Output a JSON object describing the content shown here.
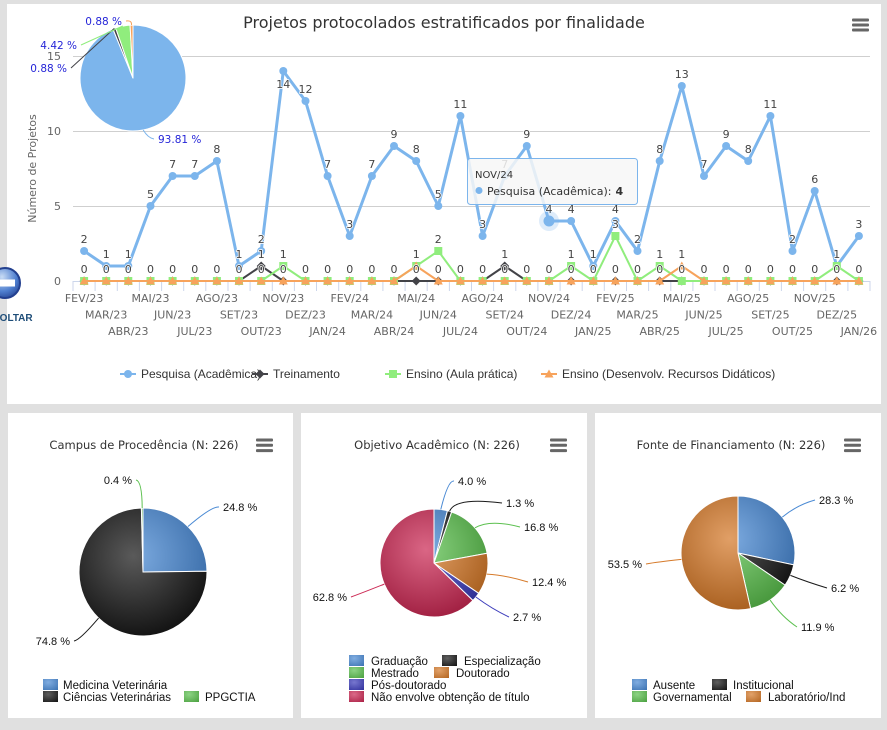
{
  "back_button": {
    "label": "VOLTAR",
    "icon": "arrow-left-circle-icon"
  },
  "main_chart": {
    "title": "Projetos protocolados estratificados por finalidade",
    "menu_icon": "hamburger-menu-icon",
    "tooltip": {
      "category": "NOV/24",
      "label": "Pesquisa (Acadêmica):",
      "value": "4",
      "color": "#7cb5ec"
    }
  },
  "chart_data": [
    {
      "type": "line",
      "title": "Projetos protocolados estratificados por finalidade",
      "xlabel": "",
      "ylabel": "Número de Projetos",
      "ylim": [
        0,
        15
      ],
      "yticks": [
        0,
        5,
        10,
        15
      ],
      "grid": true,
      "legend": "bottom",
      "categories": [
        "FEV/23",
        "MAR/23",
        "ABR/23",
        "MAI/23",
        "JUN/23",
        "JUL/23",
        "AGO/23",
        "SET/23",
        "OUT/23",
        "NOV/23",
        "DEZ/23",
        "JAN/24",
        "FEV/24",
        "MAR/24",
        "ABR/24",
        "MAI/24",
        "JUN/24",
        "JUL/24",
        "AGO/24",
        "SET/24",
        "OUT/24",
        "NOV/24",
        "DEZ/24",
        "JAN/25",
        "FEV/25",
        "MAR/25",
        "ABR/25",
        "MAI/25",
        "JUN/25",
        "JUL/25",
        "AGO/25",
        "SET/25",
        "OUT/25",
        "NOV/25",
        "DEZ/25",
        "JAN/26"
      ],
      "series": [
        {
          "name": "Pesquisa (Acadêmica)",
          "color": "#7cb5ec",
          "marker": "circle",
          "values": [
            2,
            1,
            1,
            5,
            7,
            7,
            8,
            1,
            2,
            14,
            12,
            7,
            3,
            7,
            9,
            8,
            5,
            11,
            3,
            7,
            9,
            4,
            4,
            1,
            4,
            2,
            8,
            13,
            7,
            9,
            8,
            11,
            2,
            6,
            1,
            3
          ]
        },
        {
          "name": "Treinamento",
          "color": "#434348",
          "marker": "diamond",
          "values": [
            0,
            0,
            0,
            0,
            0,
            0,
            0,
            0,
            1,
            0,
            0,
            0,
            0,
            0,
            0,
            0,
            0,
            0,
            0,
            1,
            0,
            0,
            0,
            0,
            0,
            0,
            0,
            0,
            0,
            0,
            0,
            0,
            0,
            0,
            0,
            0
          ]
        },
        {
          "name": "Ensino (Aula prática)",
          "color": "#90ed7d",
          "marker": "square",
          "values": [
            0,
            0,
            0,
            0,
            0,
            0,
            0,
            0,
            0,
            1,
            0,
            0,
            0,
            0,
            0,
            1,
            2,
            0,
            0,
            0,
            0,
            0,
            1,
            0,
            3,
            0,
            1,
            0,
            0,
            0,
            0,
            0,
            0,
            0,
            1,
            0
          ]
        },
        {
          "name": "Ensino (Desenvolv. Recursos Didáticos)",
          "color": "#f7a35c",
          "marker": "triangle",
          "values": [
            0,
            0,
            0,
            0,
            0,
            0,
            0,
            0,
            0,
            0,
            0,
            0,
            0,
            0,
            0,
            1,
            0,
            0,
            0,
            0,
            0,
            0,
            0,
            0,
            0,
            0,
            0,
            1,
            0,
            0,
            0,
            0,
            0,
            0,
            0,
            0
          ]
        }
      ]
    },
    {
      "type": "pie",
      "title": "",
      "slices": [
        {
          "name": "Pesquisa (Acadêmica)",
          "value": 93.81,
          "label": "93.81 %",
          "color": "#7cb5ec"
        },
        {
          "name": "Treinamento",
          "value": 0.88,
          "label": "0.88 %",
          "color": "#434348"
        },
        {
          "name": "Ensino (Aula prática)",
          "value": 4.42,
          "label": "4.42 %",
          "color": "#90ed7d"
        },
        {
          "name": "Ensino (Desenvolv. Recursos Didáticos)",
          "value": 0.88,
          "label": "0.88 %",
          "color": "#f7a35c"
        }
      ]
    },
    {
      "type": "pie",
      "title": "Campus de Procedência (N: 226)",
      "legend": "bottom",
      "slices": [
        {
          "name": "Medicina Veterinária",
          "value": 24.8,
          "label": "24.8 %",
          "color": "#4a8ad4"
        },
        {
          "name": "Ciências Veterinárias",
          "value": 74.8,
          "label": "74.8 %",
          "color": "#1a1a1a"
        },
        {
          "name": "PPGCTIA",
          "value": 0.4,
          "label": "0.4 %",
          "color": "#5cc04f"
        }
      ]
    },
    {
      "type": "pie",
      "title": "Objetivo Acadêmico (N: 226)",
      "legend": "bottom",
      "slices": [
        {
          "name": "Graduação",
          "value": 4.0,
          "label": "4.0 %",
          "color": "#4a8ad4"
        },
        {
          "name": "Especialização",
          "value": 1.3,
          "label": "1.3 %",
          "color": "#1a1a1a"
        },
        {
          "name": "Mestrado",
          "value": 16.8,
          "label": "16.8 %",
          "color": "#5cc04f"
        },
        {
          "name": "Doutorado",
          "value": 12.4,
          "label": "12.4 %",
          "color": "#d67a2a"
        },
        {
          "name": "Pós-doutorado",
          "value": 2.7,
          "label": "2.7 %",
          "color": "#3d3dbb"
        },
        {
          "name": "Não envolve obtenção de título",
          "value": 62.8,
          "label": "62.8 %",
          "color": "#cc2a55"
        }
      ]
    },
    {
      "type": "pie",
      "title": "Fonte de Financiamento (N: 226)",
      "legend": "bottom",
      "slices": [
        {
          "name": "Ausente",
          "value": 28.3,
          "label": "28.3 %",
          "color": "#4a8ad4"
        },
        {
          "name": "Institucional",
          "value": 6.2,
          "label": "6.2 %",
          "color": "#1a1a1a"
        },
        {
          "name": "Governamental",
          "value": 11.9,
          "label": "11.9 %",
          "color": "#5cc04f"
        },
        {
          "name": "Laboratório/Ind",
          "value": 53.5,
          "label": "53.5 %",
          "color": "#d67a2a"
        }
      ]
    }
  ]
}
